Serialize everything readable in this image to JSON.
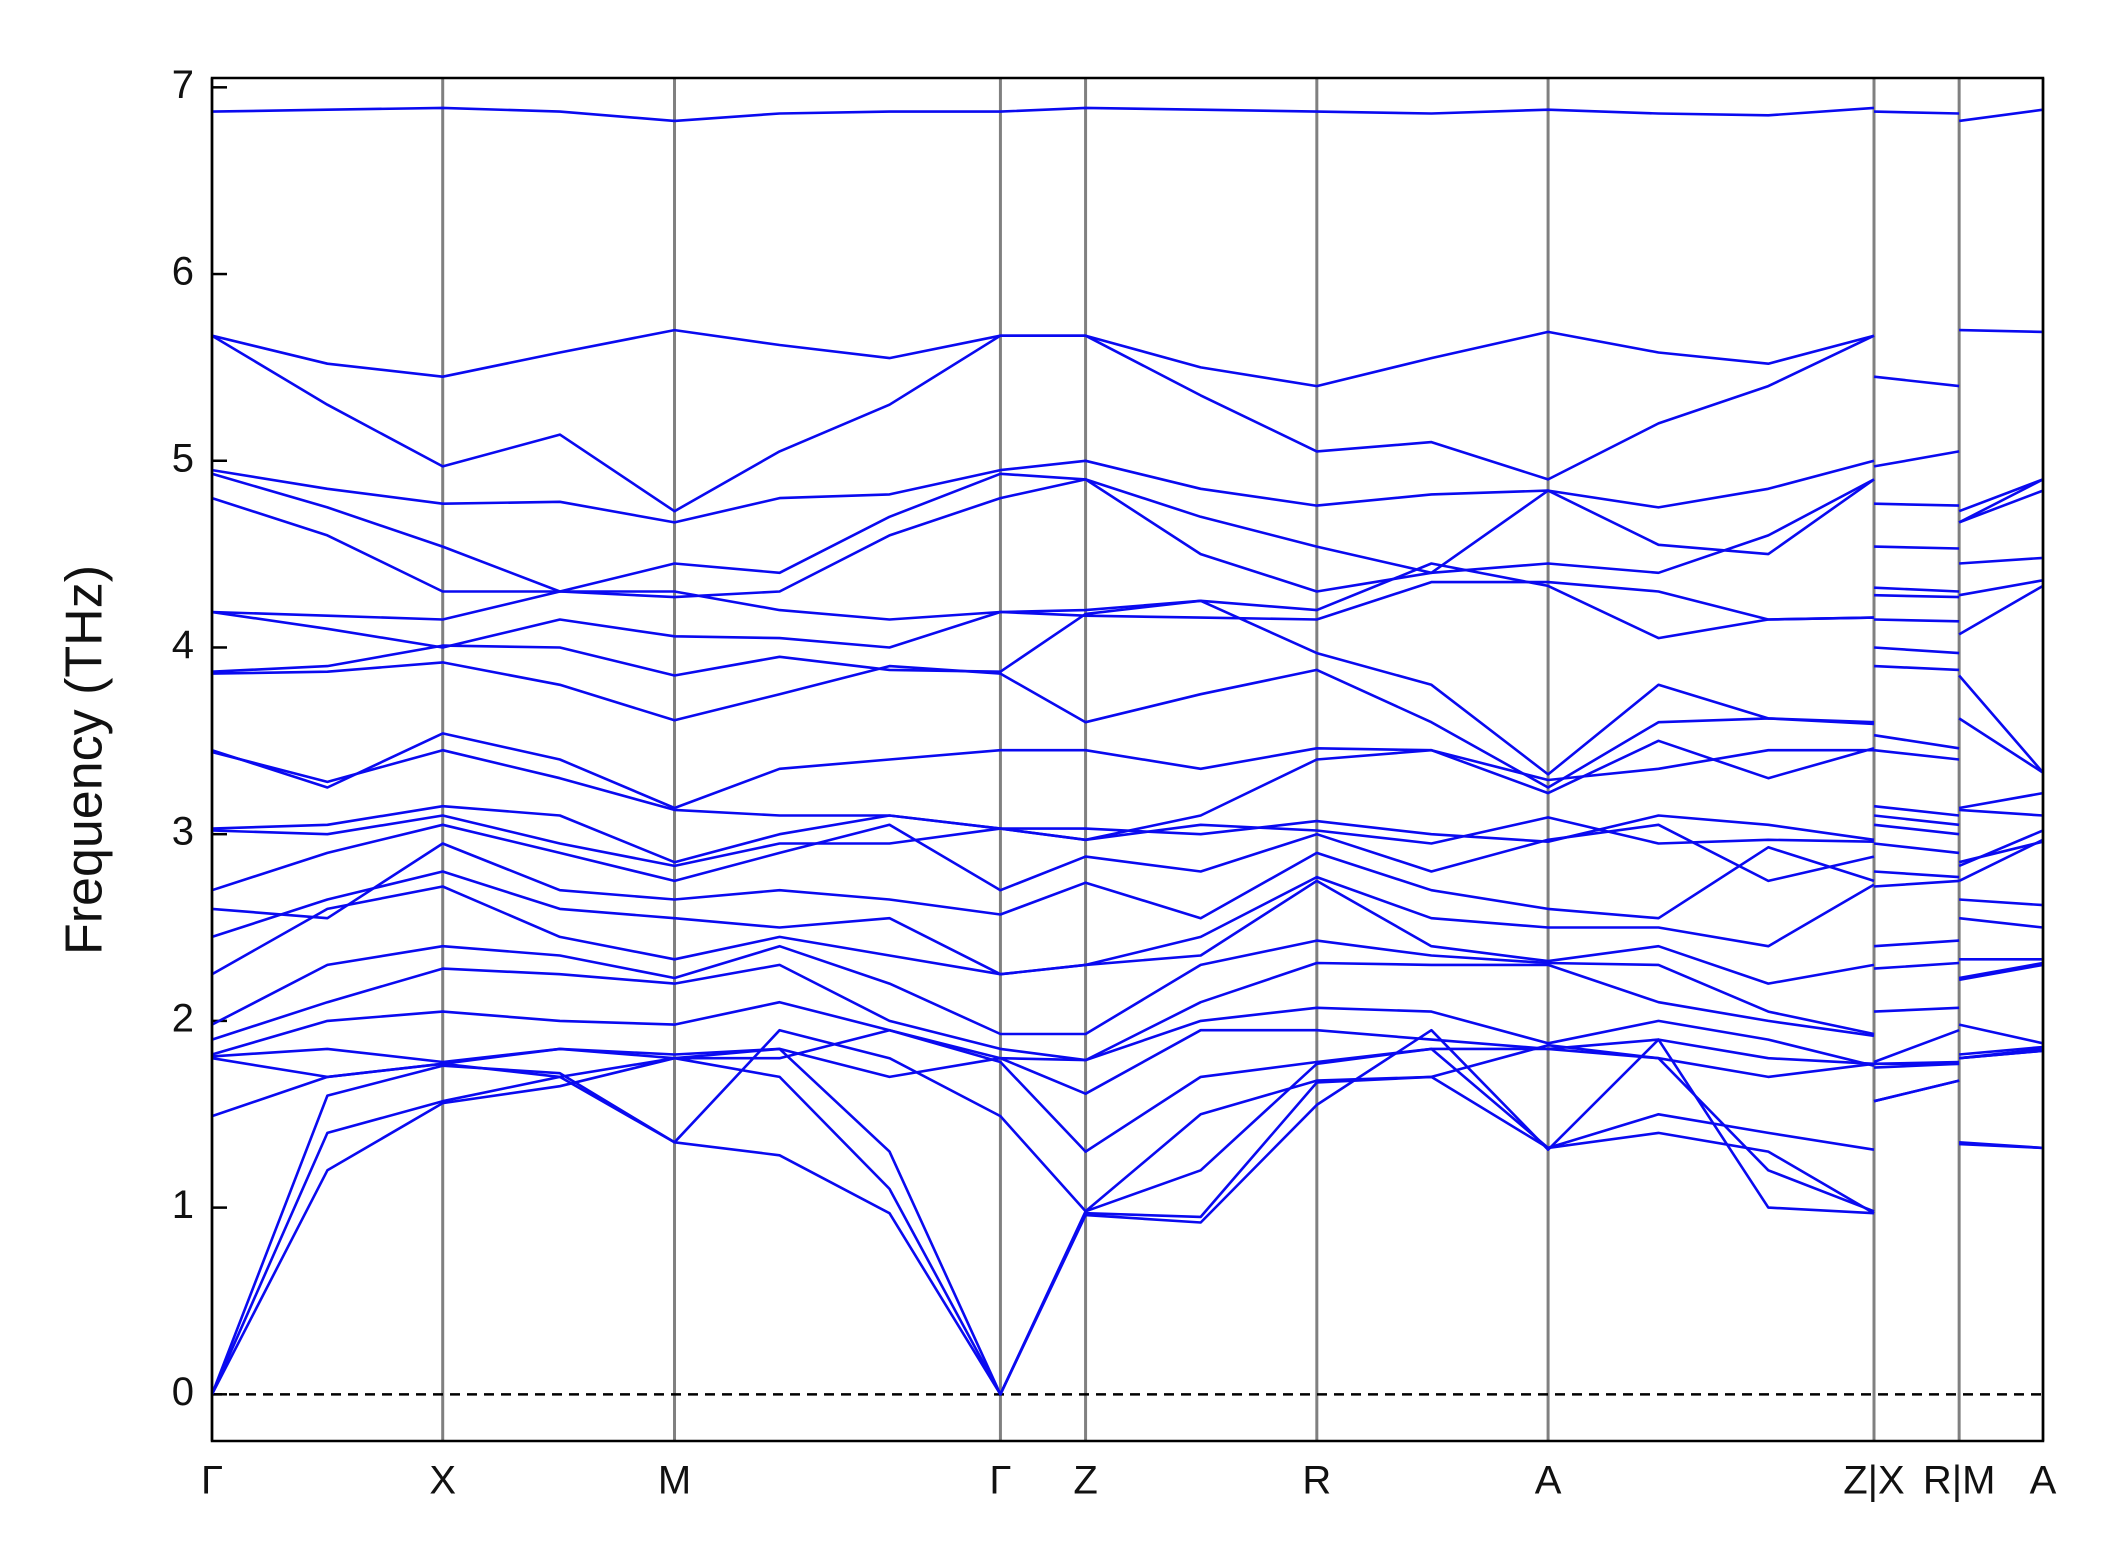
{
  "chart_data": {
    "type": "line",
    "y_label": "Frequency (THz)",
    "color": "#0a0af0",
    "zero_line": true,
    "xlim": [
      0,
      1
    ],
    "xticks": [
      {
        "value": 0,
        "label": "Γ"
      },
      {
        "value": 0.126,
        "label": "X"
      },
      {
        "value": 0.2526,
        "label": "M"
      },
      {
        "value": 0.4306,
        "label": "Γ"
      },
      {
        "value": 0.4771,
        "label": "Z"
      },
      {
        "value": 0.6034,
        "label": "R"
      },
      {
        "value": 0.7297,
        "label": "A"
      },
      {
        "value": 0.9077,
        "label": "Z|X"
      },
      {
        "value": 0.9542,
        "label": "R|M"
      },
      {
        "value": 1,
        "label": "A"
      }
    ],
    "ylim": [
      -0.25,
      7.05
    ],
    "yticks": [
      0,
      1,
      2,
      3,
      4,
      5,
      6,
      7
    ],
    "x": [
      0,
      0.063,
      0.126,
      0.19,
      0.2526,
      0.31,
      0.37,
      0.4306,
      0.4771,
      0.54,
      0.6034,
      0.666,
      0.7297,
      0.79,
      0.85,
      0.9077,
      0.9077,
      0.9077,
      0.9542,
      0.9542,
      0.9542,
      1
    ],
    "series": [
      {
        "values": [
          6.87,
          6.88,
          6.89,
          6.87,
          6.82,
          6.86,
          6.87,
          6.87,
          6.89,
          6.88,
          6.87,
          6.86,
          6.88,
          6.86,
          6.85,
          6.89,
          null,
          6.87,
          6.86,
          null,
          6.82,
          6.88
        ]
      },
      {
        "values": [
          5.67,
          5.52,
          5.45,
          5.58,
          5.7,
          5.62,
          5.55,
          5.67,
          5.67,
          5.5,
          5.4,
          5.55,
          5.69,
          5.58,
          5.52,
          5.67,
          null,
          5.45,
          5.4,
          null,
          5.7,
          5.69
        ]
      },
      {
        "values": [
          5.67,
          5.3,
          4.97,
          5.14,
          4.73,
          5.05,
          5.3,
          5.67,
          5.67,
          5.35,
          5.05,
          5.1,
          4.9,
          5.2,
          5.4,
          5.67,
          null,
          4.97,
          5.05,
          null,
          4.73,
          4.9
        ]
      },
      {
        "values": [
          4.95,
          4.85,
          4.77,
          4.78,
          4.67,
          4.8,
          4.82,
          4.95,
          5.0,
          4.85,
          4.76,
          4.82,
          4.84,
          4.75,
          4.85,
          5.0,
          null,
          4.77,
          4.76,
          null,
          4.67,
          4.84
        ]
      },
      {
        "values": [
          4.93,
          4.75,
          4.54,
          4.3,
          4.45,
          4.4,
          4.7,
          4.93,
          4.9,
          4.7,
          4.54,
          4.4,
          4.84,
          4.55,
          4.5,
          4.9,
          null,
          4.54,
          4.53,
          null,
          4.67,
          4.9
        ]
      },
      {
        "values": [
          4.8,
          4.6,
          4.3,
          4.3,
          4.27,
          4.3,
          4.6,
          4.8,
          4.9,
          4.5,
          4.3,
          4.4,
          4.45,
          4.4,
          4.6,
          4.9,
          null,
          4.32,
          4.3,
          null,
          4.45,
          4.48
        ]
      },
      {
        "values": [
          4.19,
          4.17,
          4.15,
          4.3,
          4.3,
          4.2,
          4.15,
          4.19,
          4.17,
          4.16,
          4.15,
          4.35,
          4.35,
          4.3,
          4.15,
          4.16,
          null,
          4.28,
          4.27,
          null,
          4.28,
          4.36
        ]
      },
      {
        "values": [
          4.19,
          4.1,
          4.0,
          4.15,
          4.06,
          4.05,
          4.0,
          4.19,
          4.2,
          4.25,
          4.2,
          4.45,
          4.33,
          4.05,
          4.15,
          4.16,
          null,
          4.15,
          4.14,
          null,
          4.07,
          4.33
        ]
      },
      {
        "values": [
          3.86,
          3.87,
          3.92,
          3.8,
          3.61,
          3.75,
          3.9,
          3.86,
          3.6,
          3.75,
          3.88,
          3.6,
          3.25,
          3.6,
          3.62,
          3.59,
          null,
          3.9,
          3.88,
          null,
          3.62,
          3.33
        ]
      },
      {
        "values": [
          3.87,
          3.9,
          4.01,
          4.0,
          3.85,
          3.95,
          3.88,
          3.87,
          4.18,
          4.25,
          3.97,
          3.8,
          3.32,
          3.8,
          3.62,
          3.6,
          null,
          4.0,
          3.97,
          null,
          3.85,
          3.33
        ]
      },
      {
        "values": [
          3.45,
          3.25,
          3.54,
          3.4,
          3.14,
          3.35,
          3.4,
          3.45,
          3.45,
          3.35,
          3.46,
          3.45,
          3.22,
          3.5,
          3.3,
          3.46,
          null,
          3.53,
          3.46,
          null,
          3.14,
          3.22
        ]
      },
      {
        "values": [
          3.44,
          3.28,
          3.45,
          3.3,
          3.13,
          3.1,
          3.1,
          3.03,
          2.97,
          3.1,
          3.4,
          3.45,
          3.29,
          3.35,
          3.45,
          3.45,
          null,
          3.45,
          3.4,
          null,
          3.13,
          3.1
        ]
      },
      {
        "values": [
          3.03,
          3.05,
          3.15,
          3.1,
          2.85,
          3.0,
          3.1,
          3.03,
          3.03,
          3.0,
          3.07,
          3.0,
          2.96,
          3.1,
          3.05,
          2.97,
          null,
          3.15,
          3.1,
          null,
          2.85,
          2.96
        ]
      },
      {
        "values": [
          3.02,
          3.0,
          3.1,
          2.95,
          2.83,
          2.95,
          2.95,
          3.03,
          2.97,
          3.05,
          3.02,
          2.95,
          3.09,
          2.95,
          2.97,
          2.96,
          null,
          3.1,
          3.05,
          null,
          2.83,
          3.02
        ]
      },
      {
        "values": [
          2.7,
          2.9,
          3.05,
          2.9,
          2.75,
          2.9,
          3.05,
          2.7,
          2.88,
          2.8,
          3.0,
          2.8,
          2.97,
          3.05,
          2.75,
          2.88,
          null,
          3.05,
          3.0,
          null,
          2.75,
          2.97
        ]
      },
      {
        "values": [
          2.6,
          2.55,
          2.95,
          2.7,
          2.65,
          2.7,
          2.65,
          2.57,
          2.74,
          2.55,
          2.9,
          2.7,
          2.6,
          2.55,
          2.93,
          2.75,
          null,
          2.95,
          2.9,
          null,
          2.65,
          2.62
        ]
      },
      {
        "values": [
          2.45,
          2.65,
          2.8,
          2.6,
          2.55,
          2.5,
          2.55,
          2.25,
          2.3,
          2.45,
          2.77,
          2.55,
          2.5,
          2.5,
          2.4,
          2.73,
          null,
          2.8,
          2.77,
          null,
          2.55,
          2.5
        ]
      },
      {
        "values": [
          2.25,
          2.6,
          2.72,
          2.45,
          2.33,
          2.45,
          2.35,
          2.25,
          2.3,
          2.35,
          2.75,
          2.4,
          2.32,
          2.4,
          2.2,
          2.3,
          null,
          2.72,
          2.75,
          null,
          2.33,
          2.33
        ]
      },
      {
        "values": [
          1.98,
          2.3,
          2.4,
          2.35,
          2.23,
          2.4,
          2.2,
          1.93,
          1.93,
          2.3,
          2.43,
          2.35,
          2.31,
          2.3,
          2.05,
          1.93,
          null,
          2.4,
          2.43,
          null,
          2.23,
          2.31
        ]
      },
      {
        "values": [
          1.9,
          2.1,
          2.28,
          2.25,
          2.2,
          2.3,
          2.0,
          1.85,
          1.79,
          2.1,
          2.31,
          2.3,
          2.3,
          2.1,
          2.0,
          1.92,
          null,
          2.28,
          2.31,
          null,
          2.22,
          2.3
        ]
      },
      {
        "values": [
          1.82,
          2.0,
          2.05,
          2.0,
          1.98,
          2.1,
          1.95,
          1.8,
          1.79,
          2.0,
          2.07,
          2.05,
          1.88,
          2.0,
          1.9,
          1.76,
          null,
          2.05,
          2.07,
          null,
          1.98,
          1.88
        ]
      },
      {
        "values": [
          1.81,
          1.85,
          1.78,
          1.85,
          1.82,
          1.85,
          1.7,
          1.8,
          1.61,
          1.95,
          1.95,
          1.9,
          1.85,
          1.9,
          1.8,
          1.77,
          null,
          1.78,
          1.95,
          null,
          1.82,
          1.86
        ]
      },
      {
        "values": [
          1.8,
          1.7,
          1.77,
          1.85,
          1.8,
          1.8,
          1.95,
          1.78,
          1.3,
          1.7,
          1.78,
          1.85,
          1.85,
          1.8,
          1.7,
          1.77,
          null,
          1.77,
          1.78,
          null,
          1.8,
          1.85
        ]
      },
      {
        "values": [
          1.49,
          1.7,
          1.77,
          1.7,
          1.35,
          1.95,
          1.8,
          1.49,
          0.98,
          1.5,
          1.68,
          1.7,
          1.32,
          1.5,
          1.4,
          1.31,
          null,
          1.57,
          1.68,
          null,
          1.35,
          1.32
        ]
      },
      {
        "values": [
          0,
          1.6,
          1.76,
          1.72,
          1.35,
          1.28,
          0.97,
          0,
          0.98,
          1.2,
          1.77,
          1.85,
          1.32,
          1.4,
          1.3,
          0.97,
          null,
          1.77,
          1.77,
          null,
          1.8,
          1.84
        ]
      },
      {
        "values": [
          0,
          1.4,
          1.57,
          1.7,
          1.8,
          1.7,
          1.1,
          0,
          0.97,
          0.95,
          1.67,
          1.7,
          1.87,
          1.8,
          1.2,
          0.98,
          null,
          1.75,
          1.77,
          null,
          1.8,
          1.84
        ]
      },
      {
        "values": [
          0,
          1.2,
          1.56,
          1.65,
          1.8,
          1.85,
          1.3,
          0,
          0.96,
          0.92,
          1.55,
          1.95,
          1.31,
          1.9,
          1.0,
          0.97,
          null,
          1.57,
          1.68,
          null,
          1.34,
          1.32
        ]
      }
    ]
  }
}
